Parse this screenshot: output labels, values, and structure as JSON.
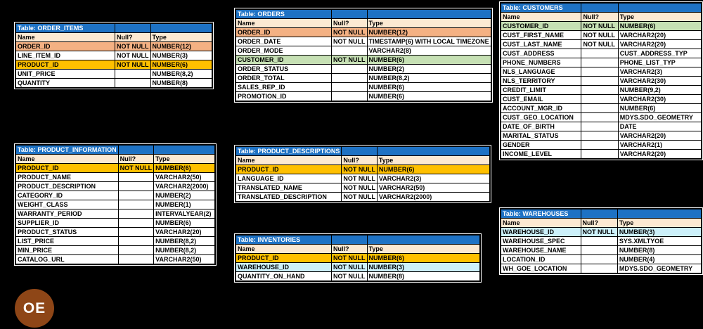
{
  "background": "#000000",
  "colors": {
    "title_bg": "#1E72C4",
    "title_fg": "#FFFFFF",
    "header_bg": "#FCE9D2",
    "row_bg": "#FFFFFF",
    "grid": "#000000",
    "salmon": "#F4B183",
    "gold": "#FFC000",
    "green": "#C6E0B4",
    "cyan": "#CCF0FA"
  },
  "badge": {
    "label": "OE",
    "bg": "#8E4617",
    "fg": "#FFFFFF"
  },
  "column_headers": [
    "Name",
    "Null?",
    "Type"
  ],
  "tables": [
    {
      "title": "Table: ORDER_ITEMS",
      "rows": [
        {
          "name": "ORDER_ID",
          "null": "NOT NULL",
          "type": "NUMBER(12)",
          "highlight": "salmon"
        },
        {
          "name": "LINE_ITEM_ID",
          "null": "NOT NULL",
          "type": "NUMBER(3)"
        },
        {
          "name": "PRODUCT_ID",
          "null": "NOT NULL",
          "type": "NUMBER(6)",
          "highlight": "gold"
        },
        {
          "name": "UNIT_PRICE",
          "null": "",
          "type": "NUMBER(8,2)"
        },
        {
          "name": "QUANTITY",
          "null": "",
          "type": "NUMBER(8)"
        }
      ]
    },
    {
      "title": "Table: ORDERS",
      "rows": [
        {
          "name": "ORDER_ID",
          "null": "NOT NULL",
          "type": "NUMBER(12)",
          "highlight": "salmon"
        },
        {
          "name": "ORDER_DATE",
          "null": "NOT NULL",
          "type": "TIMESTAMP(6) WITH LOCAL TIMEZONE"
        },
        {
          "name": "ORDER_MODE",
          "null": "",
          "type": "VARCHAR2(8)"
        },
        {
          "name": "CUSTOMER_ID",
          "null": "NOT NULL",
          "type": "NUMBER(6)",
          "highlight": "green"
        },
        {
          "name": "ORDER_STATUS",
          "null": "",
          "type": "NUMBER(2)"
        },
        {
          "name": "ORDER_TOTAL",
          "null": "",
          "type": "NUMBER(8,2)"
        },
        {
          "name": "SALES_REP_ID",
          "null": "",
          "type": "NUMBER(6)"
        },
        {
          "name": "PROMOTION_ID",
          "null": "",
          "type": "NUMBER(6)"
        }
      ]
    },
    {
      "title": "Table: CUSTOMERS",
      "rows": [
        {
          "name": "CUSTOMER_ID",
          "null": "NOT NULL",
          "type": "NUMBER(6)",
          "highlight": "green"
        },
        {
          "name": "CUST_FIRST_NAME",
          "null": "NOT NULL",
          "type": "VARCHAR2(20)"
        },
        {
          "name": "CUST_LAST_NAME",
          "null": "NOT NULL",
          "type": "VARCHAR2(20)"
        },
        {
          "name": "CUST_ADDRESS",
          "null": "",
          "type": "CUST_ADDRESS_TYP"
        },
        {
          "name": "PHONE_NUMBERS",
          "null": "",
          "type": "PHONE_LIST_TYP"
        },
        {
          "name": "NLS_LANGUAGE",
          "null": "",
          "type": "VARCHAR2(3)"
        },
        {
          "name": "NLS_TERRITORY",
          "null": "",
          "type": "VARCHAR2(30)"
        },
        {
          "name": "CREDIT_LIMIT",
          "null": "",
          "type": "NUMBER(9,2)"
        },
        {
          "name": "CUST_EMAIL",
          "null": "",
          "type": "VARCHAR2(30)"
        },
        {
          "name": "ACCOUNT_MGR_ID",
          "null": "",
          "type": "NUMBER(6)"
        },
        {
          "name": "CUST_GEO_LOCATION",
          "null": "",
          "type": "MDYS.SDO_GEOMETRY"
        },
        {
          "name": "DATE_OF_BIRTH",
          "null": "",
          "type": "DATE"
        },
        {
          "name": "MARITAL_STATUS",
          "null": "",
          "type": "VARCHAR2(20)"
        },
        {
          "name": "GENDER",
          "null": "",
          "type": "VARCHAR2(1)"
        },
        {
          "name": "INCOME_LEVEL",
          "null": "",
          "type": "VARCHAR2(20)"
        }
      ]
    },
    {
      "title": "Table: PRODUCT_INFORMATION",
      "rows": [
        {
          "name": "PRODUCT_ID",
          "null": "NOT NULL",
          "type": "NUMBER(6)",
          "highlight": "gold"
        },
        {
          "name": "PRODUCT_NAME",
          "null": "",
          "type": "VARCHAR2(50)"
        },
        {
          "name": "PRODUCT_DESCRIPTION",
          "null": "",
          "type": "VARCHAR2(2000)"
        },
        {
          "name": "CATEGORY_ID",
          "null": "",
          "type": "NUMBER(2)"
        },
        {
          "name": "WEIGHT_CLASS",
          "null": "",
          "type": "NUMBER(1)"
        },
        {
          "name": "WARRANTY_PERIOD",
          "null": "",
          "type": "INTERVALYEAR(2)"
        },
        {
          "name": "SUPPLIER_ID",
          "null": "",
          "type": "NUMBER(6)"
        },
        {
          "name": "PRODUCT_STATUS",
          "null": "",
          "type": "VARCHAR2(20)"
        },
        {
          "name": "LIST_PRICE",
          "null": "",
          "type": "NUMBER(8,2)"
        },
        {
          "name": "MIN_PRICE",
          "null": "",
          "type": "NUMBER(8,2)"
        },
        {
          "name": "CATALOG_URL",
          "null": "",
          "type": "VARCHAR2(50)"
        }
      ]
    },
    {
      "title": "Table: PRODUCT_DESCRIPTIONS",
      "rows": [
        {
          "name": "PRODUCT_ID",
          "null": "NOT NULL",
          "type": "NUMBER(6)",
          "highlight": "gold"
        },
        {
          "name": "LANGUAGE_ID",
          "null": "NOT NULL",
          "type": "VARCHAR2(3)"
        },
        {
          "name": "TRANSLATED_NAME",
          "null": "NOT NULL",
          "type": "VARCHAR2(50)"
        },
        {
          "name": "TRANSLATED_DESCRIPTION",
          "null": "NOT NULL",
          "type": "VARCHAR2(2000)"
        }
      ]
    },
    {
      "title": "Table: INVENTORIES",
      "rows": [
        {
          "name": "PRODUCT_ID",
          "null": "NOT NULL",
          "type": "NUMBER(6)",
          "highlight": "gold"
        },
        {
          "name": "WAREHOUSE_ID",
          "null": "NOT NULL",
          "type": "NUMBER(3)",
          "highlight": "cyan"
        },
        {
          "name": "QUANTITY_ON_HAND",
          "null": "NOT NULL",
          "type": "NUMBER(8)"
        }
      ]
    },
    {
      "title": "Table: WAREHOUSES",
      "rows": [
        {
          "name": "WAREHOUSE_ID",
          "null": "NOT NULL",
          "type": "NUMBER(3)",
          "highlight": "cyan"
        },
        {
          "name": "WAREHOUSE_SPEC",
          "null": "",
          "type": "SYS.XMLTYOE"
        },
        {
          "name": "WAREHOUSE_NAME",
          "null": "",
          "type": "NUMBER(8)"
        },
        {
          "name": "LOCATION_ID",
          "null": "",
          "type": "NUMBER(4)"
        },
        {
          "name": "WH_GOE_LOCATION",
          "null": "",
          "type": "MDYS.SDO_GEOMETRY"
        }
      ]
    }
  ]
}
